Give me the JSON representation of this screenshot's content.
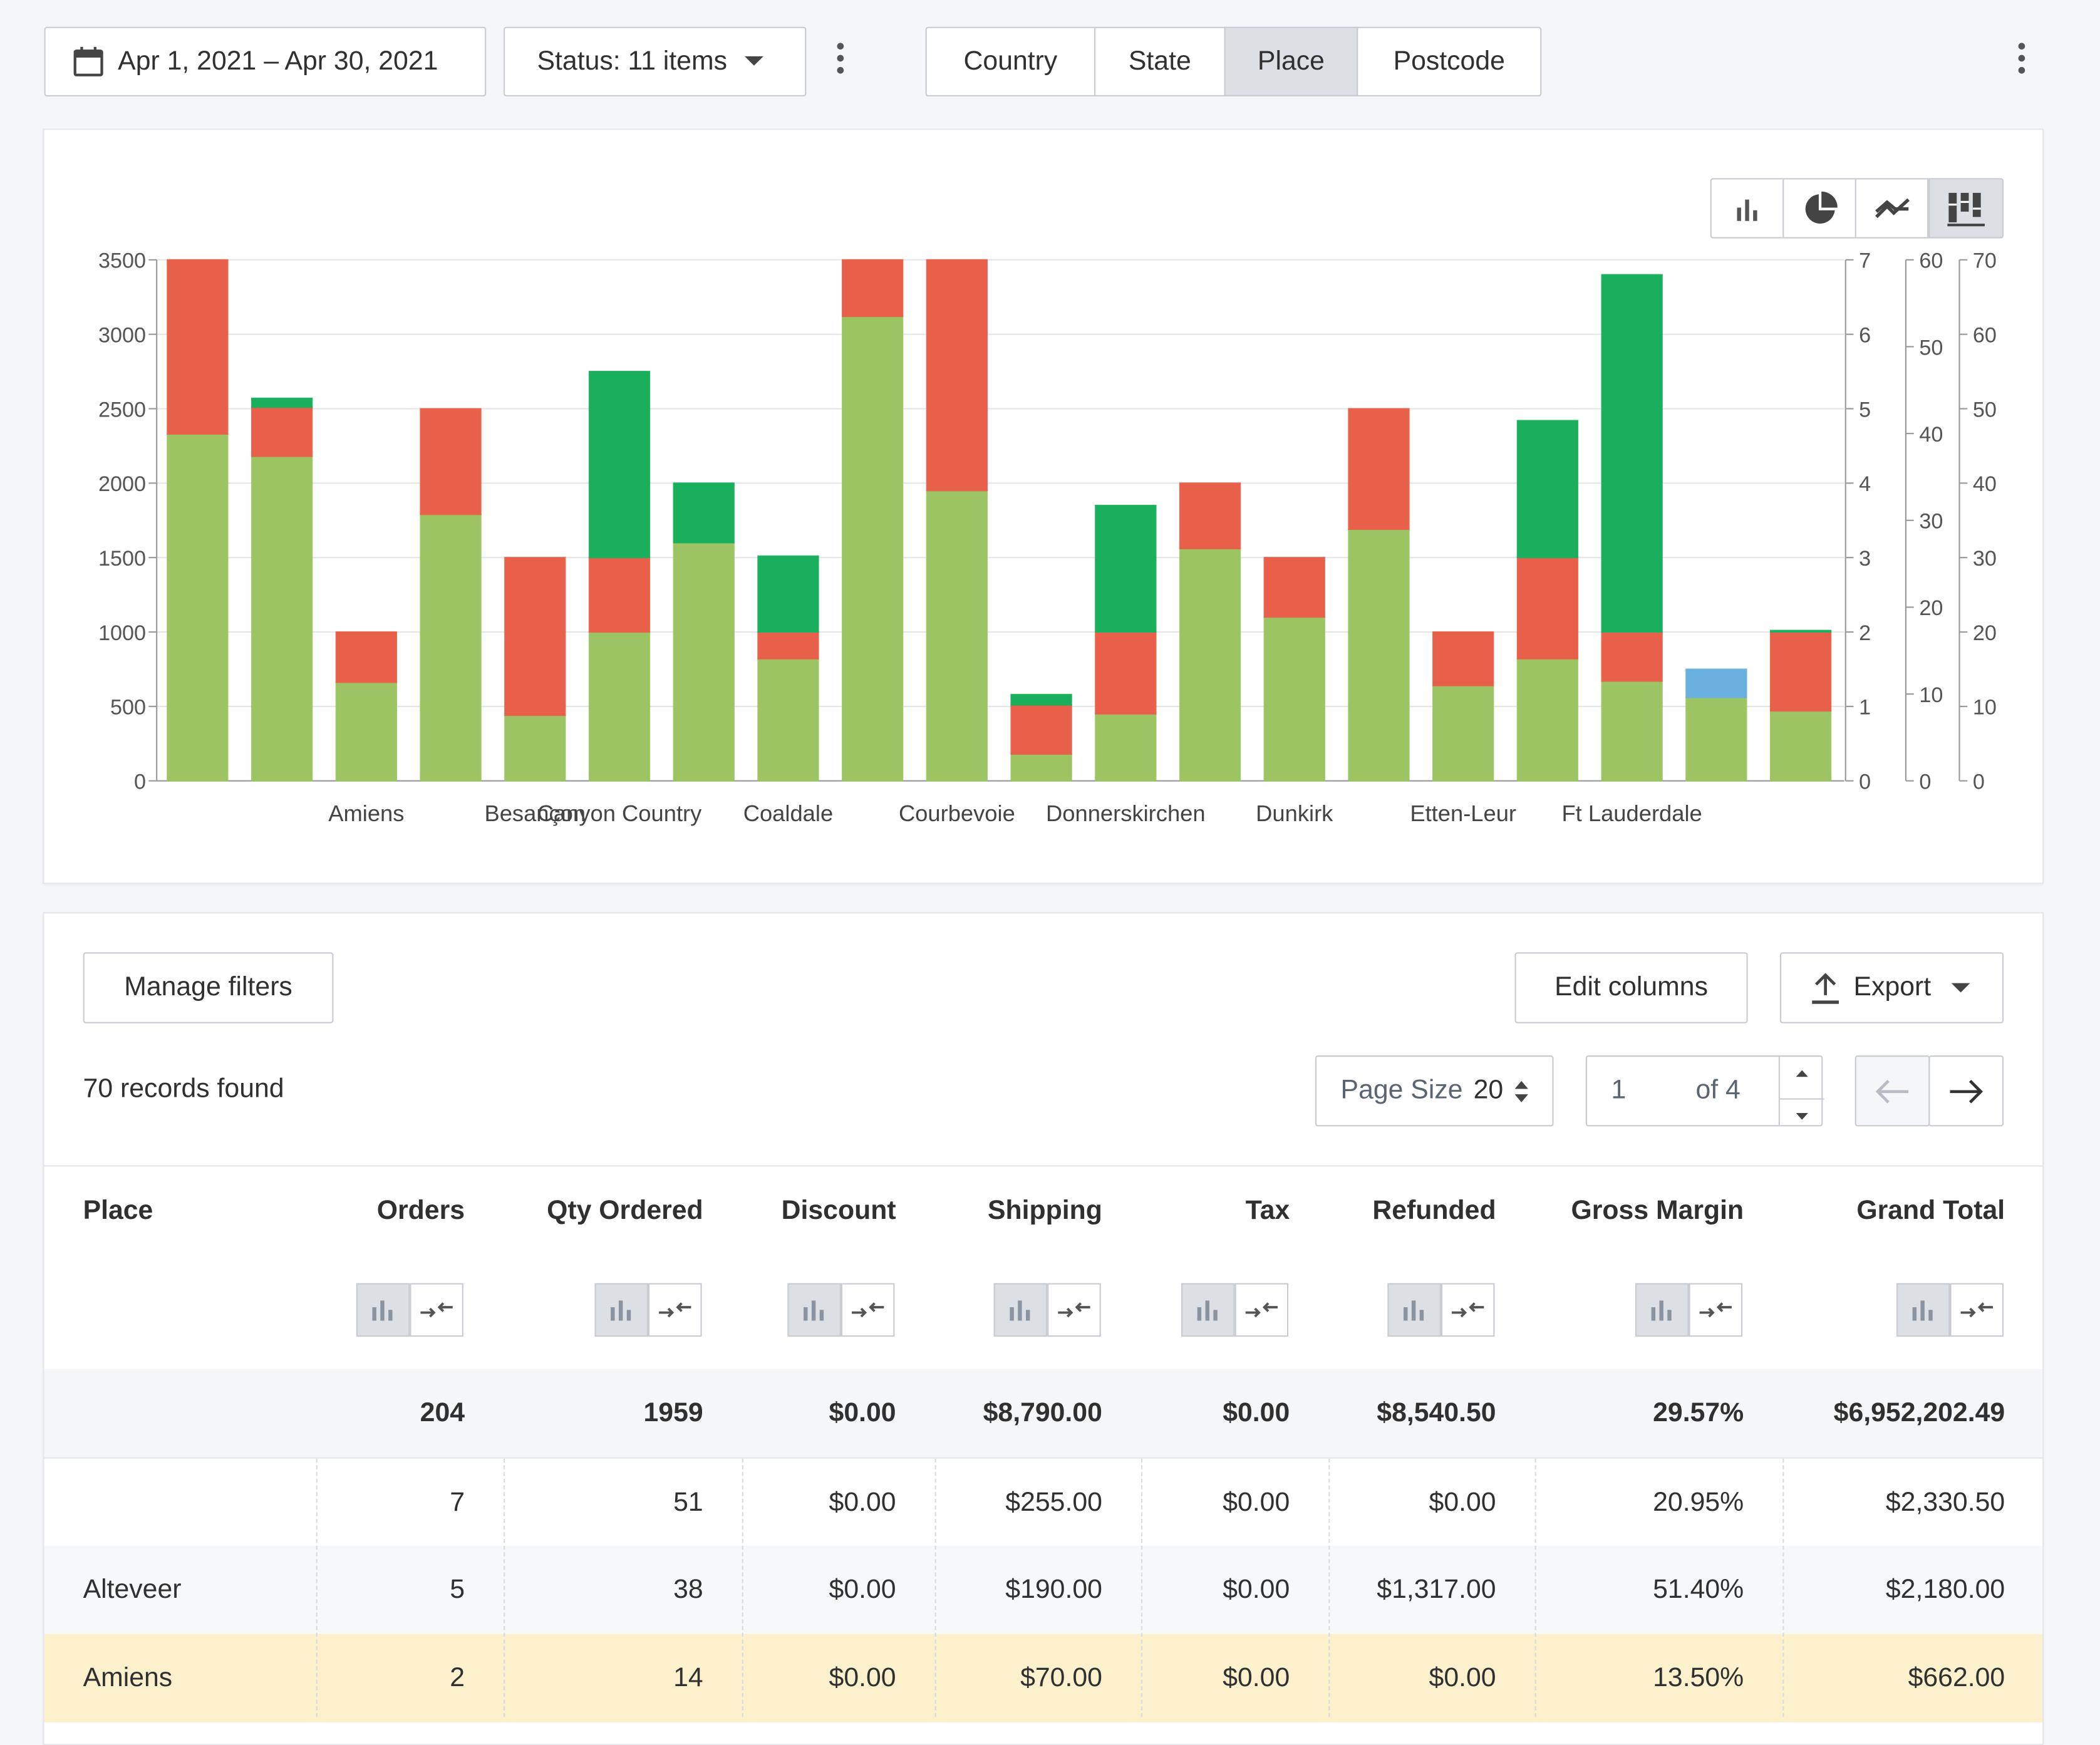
{
  "toolbar": {
    "date_range": "Apr 1, 2021 – Apr 30, 2021",
    "status": "Status: 11 items",
    "tabs": [
      {
        "label": "Country",
        "active": false
      },
      {
        "label": "State",
        "active": false
      },
      {
        "label": "Place",
        "active": true
      },
      {
        "label": "Postcode",
        "active": false
      }
    ]
  },
  "chart_controls": [
    "bar-chart-icon",
    "pie-chart-icon",
    "trend-chart-icon",
    "stacked-chart-icon"
  ],
  "chart_data": {
    "type": "bar",
    "stacked": true,
    "categories": [
      "",
      "",
      "Amiens",
      "",
      "Besançon",
      "Canyon Country",
      "",
      "Coaldale",
      "",
      "Courbevoie",
      "",
      "Donnerskirchen",
      "",
      "Dunkirk",
      "",
      "Etten-Leur",
      "",
      "Ft Lauderdale",
      "",
      ""
    ],
    "category_labels_shown": [
      "Amiens",
      "Besançon",
      "Canyon Country",
      "Coaldale",
      "Courbevoie",
      "Donnerskirchen",
      "Dunkirk",
      "Etten-Leur",
      "Ft Lauderdale"
    ],
    "series": [
      {
        "color": "#9cc462",
        "values": [
          2330,
          2180,
          662,
          1790,
          440,
          1000,
          1600,
          820,
          3120,
          1950,
          180,
          450,
          1560,
          1100,
          1690,
          640,
          820,
          670,
          560,
          470
        ]
      },
      {
        "color": "#e8604a",
        "values": [
          1170,
          330,
          338,
          710,
          1060,
          500,
          0,
          180,
          380,
          1550,
          330,
          550,
          440,
          400,
          810,
          360,
          680,
          330,
          0,
          530
        ]
      },
      {
        "color": "#1aaf5d",
        "values": [
          0,
          60,
          0,
          0,
          0,
          1250,
          400,
          510,
          0,
          0,
          70,
          850,
          0,
          0,
          0,
          0,
          920,
          2400,
          0,
          10
        ]
      },
      {
        "color": "#6ab0de",
        "values": [
          0,
          0,
          0,
          0,
          0,
          0,
          0,
          0,
          0,
          0,
          0,
          0,
          0,
          0,
          0,
          0,
          0,
          0,
          190,
          0
        ]
      }
    ],
    "ylim": [
      0,
      3500
    ],
    "yticks": [
      0,
      500,
      1000,
      1500,
      2000,
      2500,
      3000,
      3500
    ],
    "right_axes": [
      {
        "ticks": [
          0,
          1,
          2,
          3,
          4,
          5,
          6,
          7
        ]
      },
      {
        "ticks": [
          0,
          10,
          20,
          30,
          40,
          50,
          60
        ]
      },
      {
        "ticks": [
          0,
          10,
          20,
          30,
          40,
          50,
          60,
          70
        ]
      }
    ],
    "grid": true
  },
  "table_toolbar": {
    "manage_filters": "Manage filters",
    "edit_columns": "Edit columns",
    "export": "Export",
    "records_found": "70 records found",
    "page_size_label": "Page Size",
    "page_size_value": "20",
    "page_current": "1",
    "page_of": "of 4"
  },
  "table": {
    "columns": [
      "Place",
      "Orders",
      "Qty Ordered",
      "Discount",
      "Shipping",
      "Tax",
      "Refunded",
      "Gross Margin",
      "Grand Total"
    ],
    "totals": [
      "",
      "204",
      "1959",
      "$0.00",
      "$8,790.00",
      "$0.00",
      "$8,540.50",
      "29.57%",
      "$6,952,202.49"
    ],
    "rows": [
      [
        "",
        "7",
        "51",
        "$0.00",
        "$255.00",
        "$0.00",
        "$0.00",
        "20.95%",
        "$2,330.50"
      ],
      [
        "Alteveer",
        "5",
        "38",
        "$0.00",
        "$190.00",
        "$0.00",
        "$1,317.00",
        "51.40%",
        "$2,180.00"
      ],
      [
        "Amiens",
        "2",
        "14",
        "$0.00",
        "$70.00",
        "$0.00",
        "$0.00",
        "13.50%",
        "$662.00"
      ]
    ]
  }
}
